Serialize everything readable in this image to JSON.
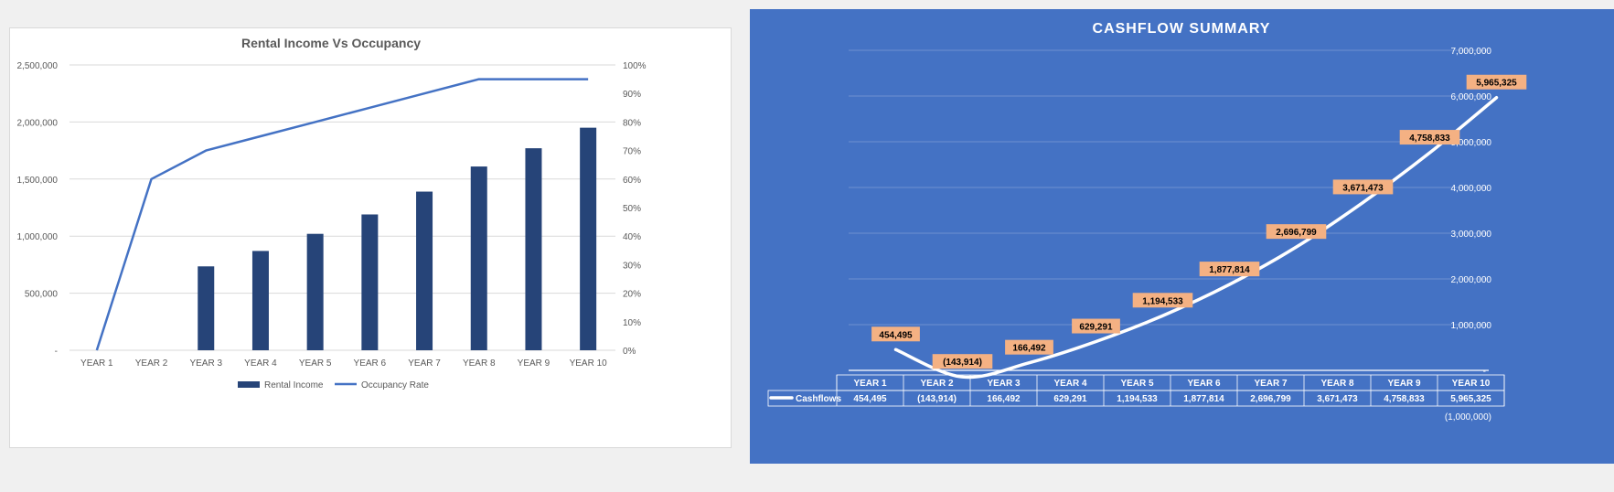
{
  "chart_data": [
    {
      "type": "bar",
      "title": "Rental Income Vs Occupancy",
      "categories": [
        "YEAR 1",
        "YEAR 2",
        "YEAR 3",
        "YEAR 4",
        "YEAR 5",
        "YEAR 6",
        "YEAR 7",
        "YEAR 8",
        "YEAR 9",
        "YEAR 10"
      ],
      "series": [
        {
          "name": "Rental Income",
          "type": "bar",
          "axis": "left",
          "values": [
            0,
            0,
            735000,
            870000,
            1020000,
            1190000,
            1390000,
            1610000,
            1770000,
            1950000
          ],
          "color": "#264478"
        },
        {
          "name": "Occupancy Rate",
          "type": "line",
          "axis": "right",
          "values": [
            0,
            0.6,
            0.7,
            0.75,
            0.8,
            0.85,
            0.9,
            0.95,
            0.95,
            0.95
          ],
          "color": "#4472c4"
        }
      ],
      "ylim": [
        0,
        2500000
      ],
      "y2lim": [
        0,
        1
      ],
      "yticks": [
        "-",
        "500,000",
        "1,000,000",
        "1,500,000",
        "2,000,000",
        "2,500,000"
      ],
      "y2ticks": [
        "0%",
        "10%",
        "20%",
        "30%",
        "40%",
        "50%",
        "60%",
        "70%",
        "80%",
        "90%",
        "100%"
      ],
      "grid": true,
      "legend": "bottom"
    },
    {
      "type": "line",
      "title": "CASHFLOW SUMMARY",
      "categories": [
        "YEAR 1",
        "YEAR 2",
        "YEAR 3",
        "YEAR 4",
        "YEAR 5",
        "YEAR 6",
        "YEAR 7",
        "YEAR 8",
        "YEAR 9",
        "YEAR 10"
      ],
      "series": [
        {
          "name": "Cashflows",
          "values": [
            454495,
            -143914,
            166492,
            629291,
            1194533,
            1877814,
            2696799,
            3671473,
            4758833,
            5965325
          ],
          "labels": [
            "454,495",
            "(143,914)",
            "166,492",
            "629,291",
            "1,194,533",
            "1,877,814",
            "2,696,799",
            "3,671,473",
            "4,758,833",
            "5,965,325"
          ],
          "color": "#ffffff"
        }
      ],
      "ylim": [
        -1000000,
        7000000
      ],
      "yticks": [
        "(1,000,000)",
        "-",
        "1,000,000",
        "2,000,000",
        "3,000,000",
        "4,000,000",
        "5,000,000",
        "6,000,000",
        "7,000,000"
      ],
      "grid": true,
      "legend": "data-table",
      "background": "#4472c4",
      "label_fill": "#f4b183"
    }
  ]
}
